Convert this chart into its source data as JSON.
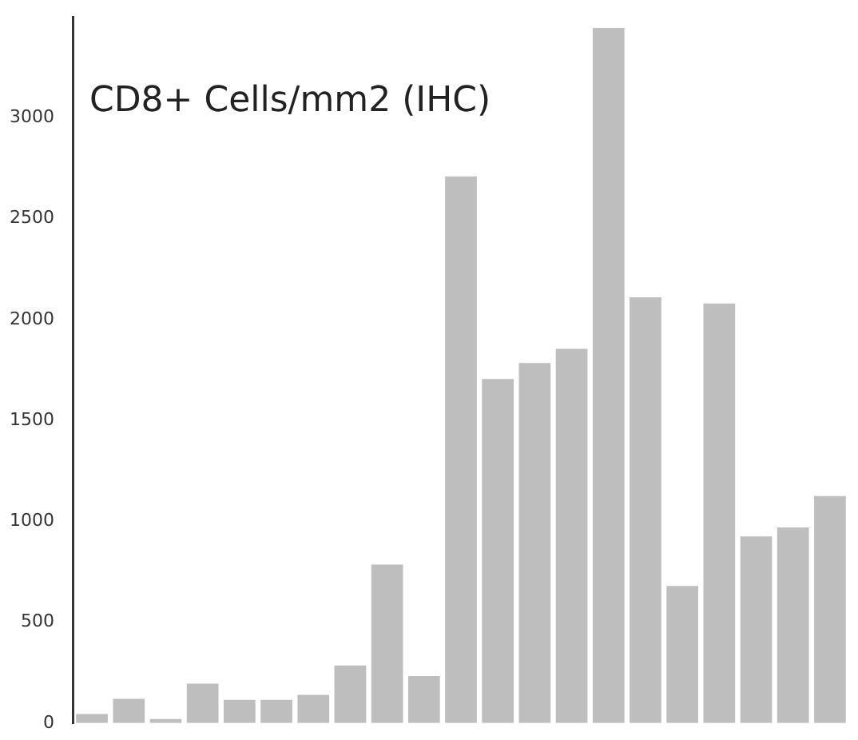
{
  "chart_data": {
    "type": "bar",
    "title": "CD8+ Cells/mm2 (IHC)",
    "categories": [
      null,
      null,
      null,
      null,
      null,
      null,
      null,
      null,
      null,
      null,
      null,
      null,
      null,
      null,
      null,
      null,
      null,
      null,
      null,
      null,
      null
    ],
    "values": [
      45,
      120,
      20,
      195,
      115,
      115,
      140,
      285,
      785,
      233,
      2710,
      1705,
      1785,
      1855,
      3445,
      2110,
      680,
      2080,
      925,
      970,
      1125
    ],
    "color": "#bebebe",
    "ylim": [
      0,
      3500
    ],
    "yticks": [
      0,
      500,
      1000,
      1500,
      2000,
      2500,
      3000
    ],
    "grid": false,
    "legend": false
  }
}
